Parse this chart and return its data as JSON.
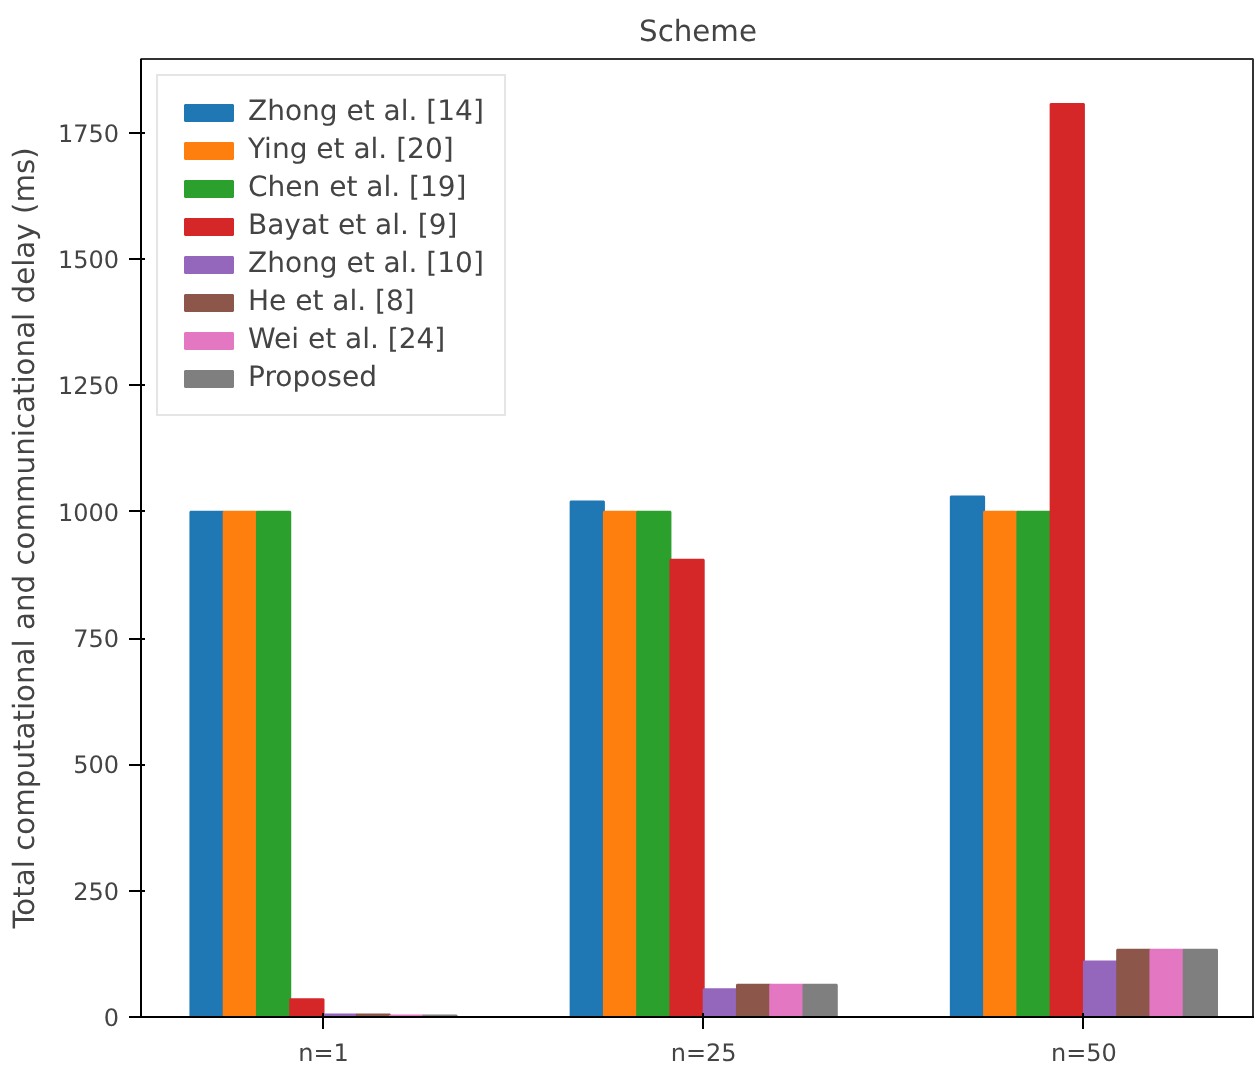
{
  "chart_data": {
    "type": "bar",
    "title": "Scheme",
    "ylabel": "Total computational and communicational delay (ms)",
    "categories": [
      "n=1",
      "n=25",
      "n=50"
    ],
    "series": [
      {
        "name": "Zhong et al. [14]",
        "color": "#1f77b4",
        "values": [
          1000,
          1020,
          1030
        ]
      },
      {
        "name": "Ying et al. [20]",
        "color": "#ff7f0e",
        "values": [
          1000,
          1000,
          1000
        ]
      },
      {
        "name": "Chen et al. [19]",
        "color": "#2ca02c",
        "values": [
          1000,
          1000,
          1000
        ]
      },
      {
        "name": "Bayat et al. [9]",
        "color": "#d62728",
        "values": [
          35,
          905,
          1807
        ]
      },
      {
        "name": "Zhong et al. [10]",
        "color": "#9467bd",
        "values": [
          5,
          55,
          110
        ]
      },
      {
        "name": "He et al. [8]",
        "color": "#8c564b",
        "values": [
          5,
          64,
          133
        ]
      },
      {
        "name": "Wei et al. [24]",
        "color": "#e377c2",
        "values": [
          3,
          64,
          133
        ]
      },
      {
        "name": "Proposed",
        "color": "#7f7f7f",
        "values": [
          3,
          64,
          133
        ]
      }
    ],
    "ylim": [
      0,
      1896
    ],
    "yticks": [
      0,
      250,
      500,
      750,
      1000,
      1250,
      1500,
      1750
    ],
    "grid": false,
    "legend": "top left"
  }
}
